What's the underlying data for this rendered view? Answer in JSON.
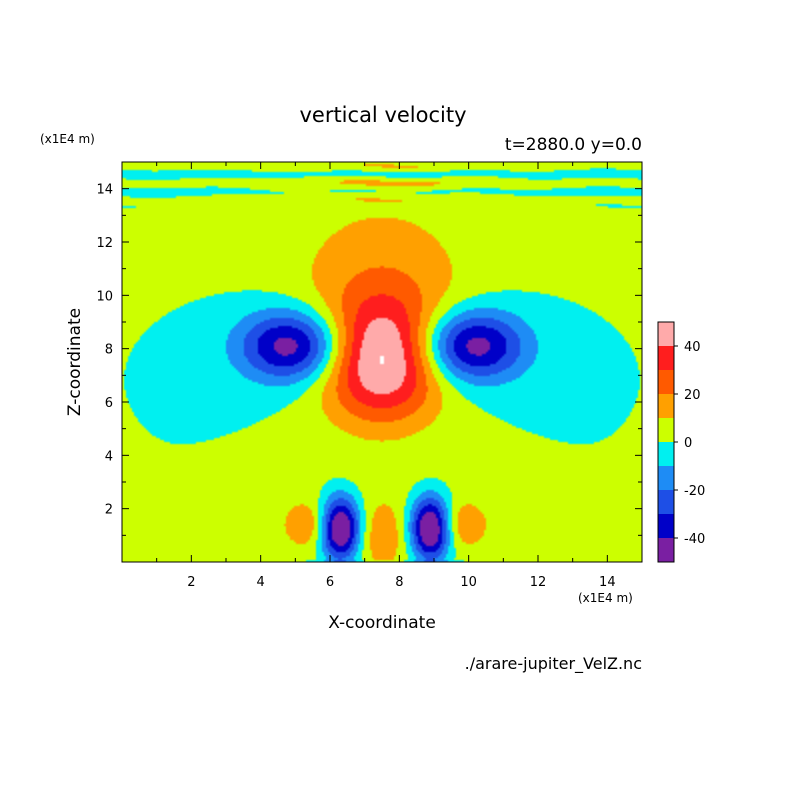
{
  "chart_data": {
    "type": "heatmap",
    "title": "vertical velocity",
    "subtitle": "t=2880.0 y=0.0",
    "xlabel": "X-coordinate",
    "ylabel": "Z-coordinate",
    "x_unit_label": "(x1E4 m)",
    "y_unit_label": "(x1E4 m)",
    "source_file": "./arare-jupiter_VelZ.nc",
    "xlim": [
      0,
      15
    ],
    "ylim": [
      0,
      15
    ],
    "xticks": [
      2,
      4,
      6,
      8,
      10,
      12,
      14
    ],
    "yticks": [
      2,
      4,
      6,
      8,
      10,
      12,
      14
    ],
    "colorbar": {
      "levels": [
        -50,
        -40,
        -30,
        -20,
        -10,
        0,
        10,
        20,
        30,
        40,
        50
      ],
      "tick_values": [
        40,
        20,
        0,
        -20,
        -40
      ],
      "colors": [
        "#7a1fa2",
        "#0000c8",
        "#1e4fe6",
        "#1e8cf5",
        "#00f0f0",
        "#ccff00",
        "#ffa000",
        "#ff5a00",
        "#ff1e1e",
        "#ffaaaa"
      ]
    },
    "features": [
      {
        "kind": "updraft",
        "x": 7.5,
        "z": 7.2,
        "peak": 50
      },
      {
        "kind": "downdraft",
        "x": 5.0,
        "z": 8.1,
        "peak": -45
      },
      {
        "kind": "downdraft",
        "x": 10.0,
        "z": 8.1,
        "peak": -45
      },
      {
        "kind": "downdraft",
        "x": 6.3,
        "z": 1.2,
        "peak": -50
      },
      {
        "kind": "downdraft",
        "x": 8.9,
        "z": 1.2,
        "peak": -50
      },
      {
        "kind": "gravity-waves",
        "z_range": [
          13.5,
          15
        ],
        "amplitude": 5
      }
    ]
  }
}
